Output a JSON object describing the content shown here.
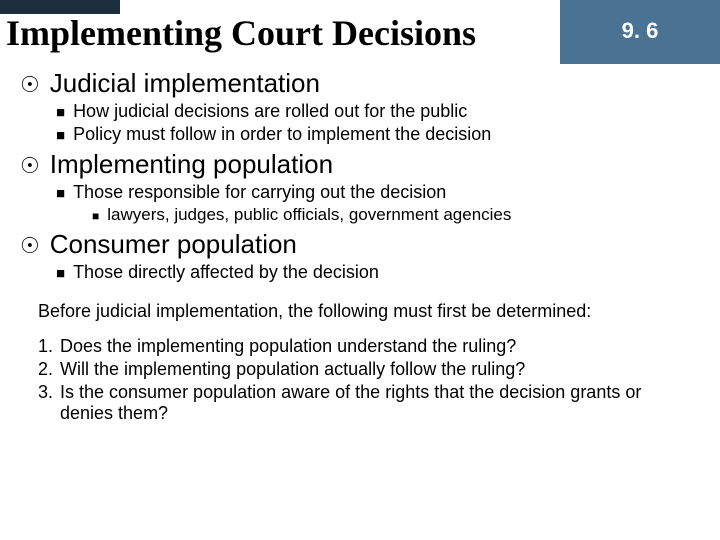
{
  "colors": {
    "badge_bg": "#4a7393",
    "badge_text": "#ffffff",
    "dark_bar": "#1a2e3d",
    "body_bg": "#ffffff",
    "text": "#000000"
  },
  "typography": {
    "title_family": "Times New Roman",
    "title_size_pt": 28,
    "l1_size_pt": 20,
    "l2_size_pt": 14,
    "l3_size_pt": 13,
    "para_size_pt": 13,
    "para_family": "Arial"
  },
  "header": {
    "title": "Implementing Court Decisions",
    "section_number": "9. 6"
  },
  "bullets": {
    "l1_glyph": "☉",
    "l2_glyph": "■",
    "l3_glyph": "■"
  },
  "outline": [
    {
      "label": "Judicial implementation",
      "children": [
        {
          "label": "How judicial decisions are rolled out for the public"
        },
        {
          "label": "Policy must follow in order to implement the decision"
        }
      ]
    },
    {
      "label": "Implementing population",
      "children": [
        {
          "label": "Those responsible for carrying out the decision",
          "children": [
            {
              "label": "lawyers, judges, public officials, government agencies"
            }
          ]
        }
      ]
    },
    {
      "label": "Consumer population",
      "children": [
        {
          "label": "Those directly affected by the decision"
        }
      ]
    }
  ],
  "paragraph": "Before judicial implementation, the following must first be determined:",
  "numbered": [
    "Does the implementing population understand the ruling?",
    "Will the implementing population actually follow the ruling?",
    "Is the consumer population aware of the rights that the decision grants or denies them?"
  ]
}
